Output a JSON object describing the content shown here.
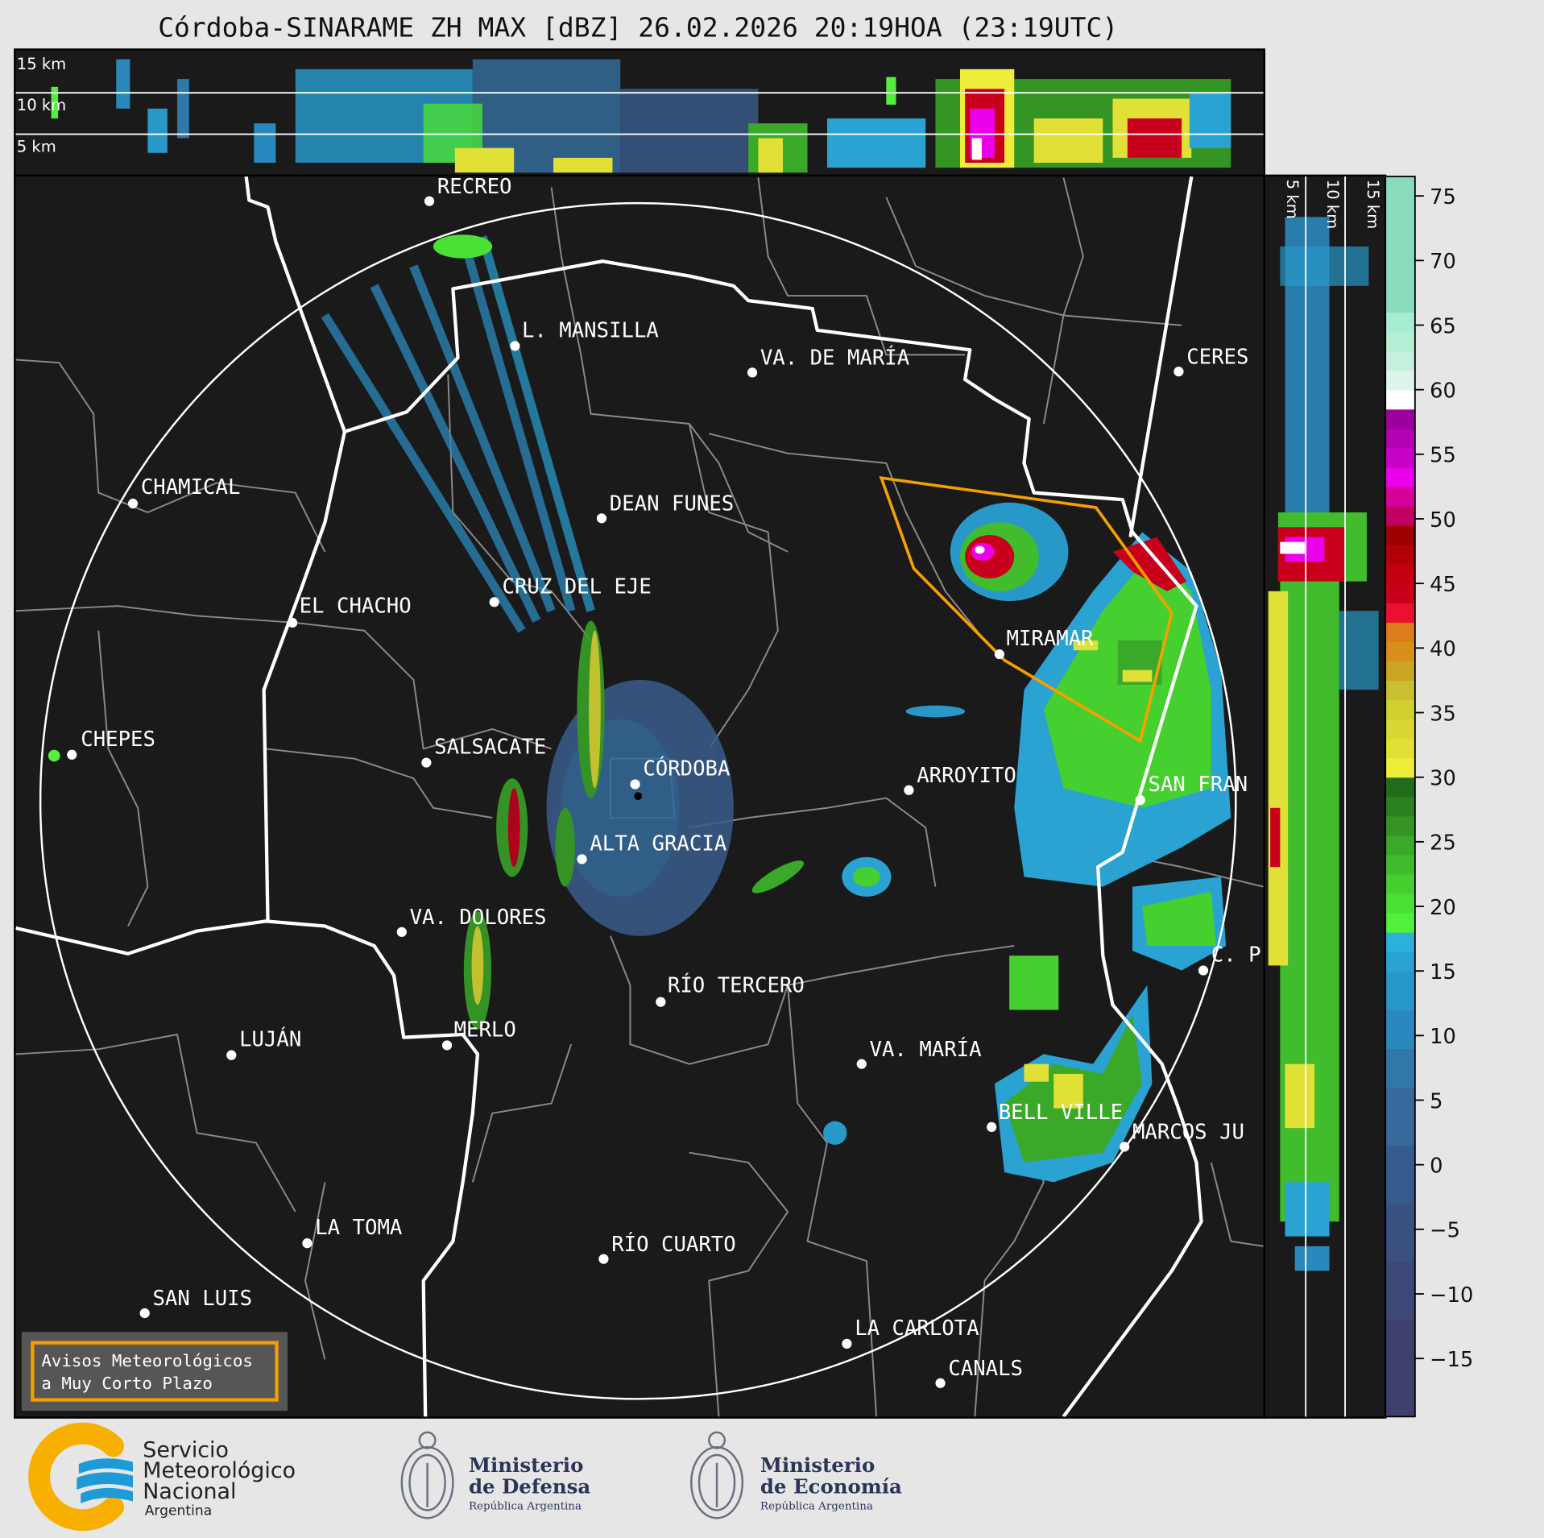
{
  "title": "Córdoba-SINARAME ZH MAX [dBZ] 26.02.2026 20:19HOA (23:19UTC)",
  "top_panel": {
    "height_labels": [
      "15 km",
      "10 km",
      "5 km"
    ]
  },
  "side_panel": {
    "height_labels": [
      "5 km",
      "10 km",
      "15 km"
    ]
  },
  "map": {
    "background_color": "#1a1a1a",
    "range_ring_color": "#ffffff",
    "province_border_color": "#ffffff",
    "department_border_color": "#8a8a8a",
    "warning_polygon_color": "#f5a000",
    "cities": [
      "RECREO",
      "L. MANSILLA",
      "VA. DE MARÍA",
      "CERES",
      "CHAMICAL",
      "DEAN FUNES",
      "CRUZ DEL EJE",
      "EL CHACHO",
      "MIRAMAR",
      "CHEPES",
      "SALSACATE",
      "CÓRDOBA",
      "ARROYITO",
      "SAN FRAN",
      "ALTA GRACIA",
      "VA. DOLORES",
      "C. P",
      "RÍO TERCERO",
      "MERLO",
      "LUJÁN",
      "VA. MARÍA",
      "BELL VILLE",
      "MARCOS JU",
      "LA TOMA",
      "RÍO CUARTO",
      "SAN LUIS",
      "LA CARLOTA",
      "CANALS"
    ]
  },
  "warning_box": {
    "line1": "Avisos Meteorológicos",
    "line2": "a Muy Corto Plazo",
    "border_color": "#f5a000",
    "fill_color": "#5a5a5a"
  },
  "colorbar": {
    "unit": "dBZ",
    "range": [
      -19.5,
      76.5
    ],
    "ticks": [
      75,
      70,
      65,
      60,
      55,
      50,
      45,
      40,
      35,
      30,
      25,
      20,
      15,
      10,
      5,
      0,
      -5,
      -10,
      -15
    ],
    "tick_labels": [
      "75",
      "70",
      "65",
      "60",
      "55",
      "50",
      "45",
      "40",
      "35",
      "30",
      "25",
      "20",
      "15",
      "10",
      "5",
      "0",
      "−5",
      "−10",
      "−15"
    ],
    "bands": [
      {
        "from": -19.5,
        "to": -12,
        "color": "#3e3f6c"
      },
      {
        "from": -12,
        "to": -7.5,
        "color": "#3c4876"
      },
      {
        "from": -7.5,
        "to": -3,
        "color": "#3a5080"
      },
      {
        "from": -3,
        "to": 1.5,
        "color": "#355c8c"
      },
      {
        "from": 1.5,
        "to": 6,
        "color": "#356a9a"
      },
      {
        "from": 6,
        "to": 9,
        "color": "#3078aa"
      },
      {
        "from": 9,
        "to": 12,
        "color": "#2a88bc"
      },
      {
        "from": 12,
        "to": 15,
        "color": "#2898c8"
      },
      {
        "from": 15,
        "to": 16.5,
        "color": "#2aa2d2"
      },
      {
        "from": 16.5,
        "to": 18,
        "color": "#2cb0dc"
      },
      {
        "from": 18,
        "to": 19.5,
        "color": "#50f03c"
      },
      {
        "from": 19.5,
        "to": 21,
        "color": "#4ae034"
      },
      {
        "from": 21,
        "to": 22.5,
        "color": "#46d030"
      },
      {
        "from": 22.5,
        "to": 24,
        "color": "#40bc2c"
      },
      {
        "from": 24,
        "to": 25.5,
        "color": "#3aa828"
      },
      {
        "from": 25.5,
        "to": 27,
        "color": "#349424"
      },
      {
        "from": 27,
        "to": 28.5,
        "color": "#2b8020"
      },
      {
        "from": 28.5,
        "to": 30,
        "color": "#226b1a"
      },
      {
        "from": 30,
        "to": 31.5,
        "color": "#eeee3a"
      },
      {
        "from": 31.5,
        "to": 33,
        "color": "#e0e036"
      },
      {
        "from": 33,
        "to": 34.5,
        "color": "#d8d830"
      },
      {
        "from": 34.5,
        "to": 36,
        "color": "#d0d030"
      },
      {
        "from": 36,
        "to": 37.5,
        "color": "#c8c030"
      },
      {
        "from": 37.5,
        "to": 39,
        "color": "#cca524"
      },
      {
        "from": 39,
        "to": 40.5,
        "color": "#d8901c"
      },
      {
        "from": 40.5,
        "to": 42,
        "color": "#dd7c1a"
      },
      {
        "from": 42,
        "to": 43.5,
        "color": "#ea1030"
      },
      {
        "from": 43.5,
        "to": 45,
        "color": "#c8001c"
      },
      {
        "from": 45,
        "to": 46.5,
        "color": "#c40010"
      },
      {
        "from": 46.5,
        "to": 48,
        "color": "#b20008"
      },
      {
        "from": 48,
        "to": 49.5,
        "color": "#9c0000"
      },
      {
        "from": 49.5,
        "to": 51,
        "color": "#c00060"
      },
      {
        "from": 51,
        "to": 52.5,
        "color": "#d8009a"
      },
      {
        "from": 52.5,
        "to": 54,
        "color": "#ea00ea"
      },
      {
        "from": 54,
        "to": 55.5,
        "color": "#c800c8"
      },
      {
        "from": 55.5,
        "to": 57,
        "color": "#b300b3"
      },
      {
        "from": 57,
        "to": 58.5,
        "color": "#9c009c"
      },
      {
        "from": 58.5,
        "to": 60,
        "color": "#ffffff"
      },
      {
        "from": 60,
        "to": 61.5,
        "color": "#dcf4ea"
      },
      {
        "from": 61.5,
        "to": 63,
        "color": "#c5f0de"
      },
      {
        "from": 63,
        "to": 64.5,
        "color": "#b7eed6"
      },
      {
        "from": 64.5,
        "to": 66,
        "color": "#a8ecd1"
      },
      {
        "from": 66,
        "to": 76.5,
        "color": "#88dcbc"
      }
    ]
  },
  "logos": {
    "smn": {
      "line1": "Servicio",
      "line2": "Meteorológico",
      "line3": "Nacional",
      "line4": "Argentina",
      "orange": "#f8b000",
      "blue": "#1e9ad6"
    },
    "defensa": {
      "line1": "Ministerio",
      "line2": "de Defensa",
      "line3": "República Argentina"
    },
    "economia": {
      "line1": "Ministerio",
      "line2": "de Economía",
      "line3": "República Argentina"
    },
    "ministry_text_color": "#2b3556"
  }
}
